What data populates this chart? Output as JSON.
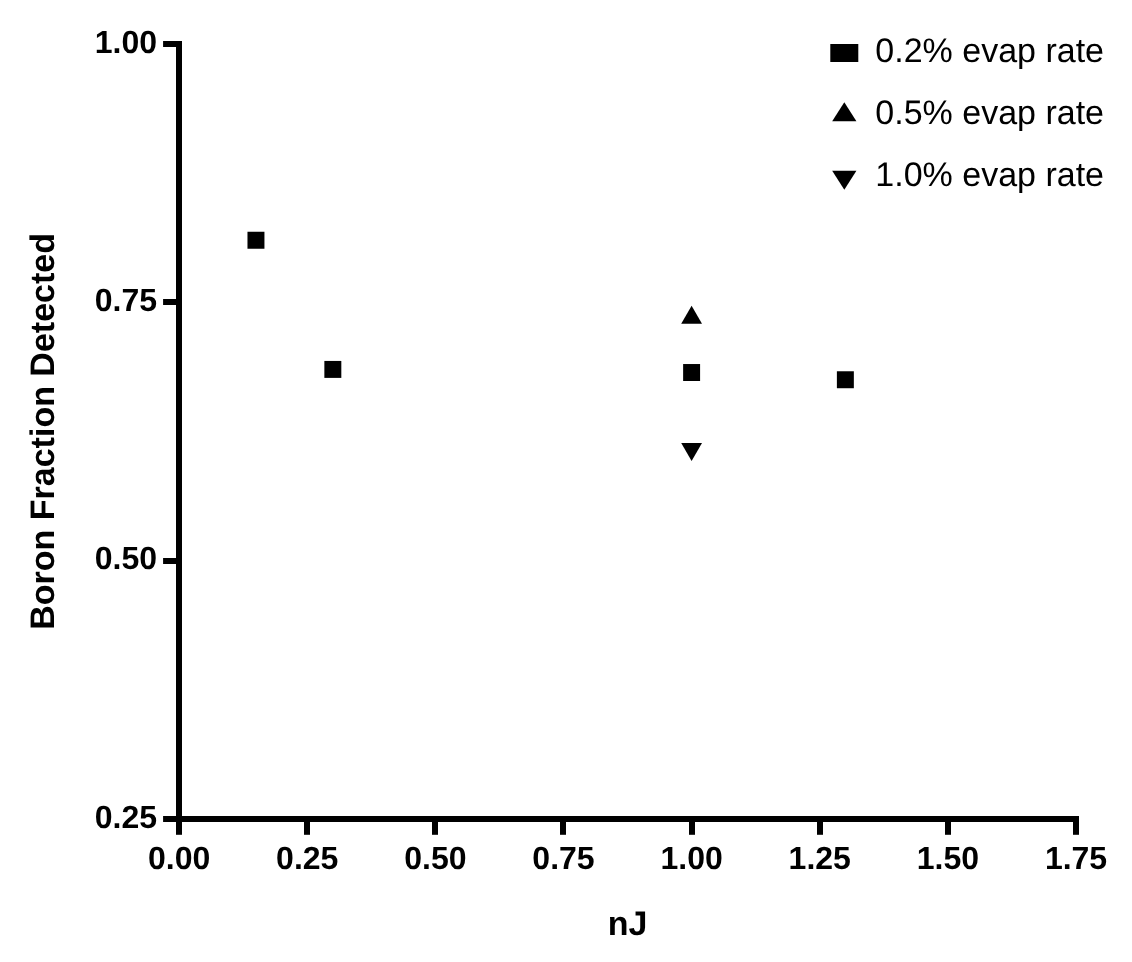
{
  "chart_data": {
    "type": "scatter",
    "xlabel": "nJ",
    "ylabel": "Boron Fraction Detected",
    "xlim": [
      0,
      1.75
    ],
    "xticks": [
      {
        "value": 0,
        "label": "0.00"
      },
      0.25,
      {
        "value": 0.5,
        "label": "0.50"
      },
      0.75,
      {
        "value": 1,
        "label": "1.00"
      },
      1.25,
      {
        "value": 1.5,
        "label": "1.50"
      },
      1.75
    ],
    "ylim": [
      0.25,
      1
    ],
    "yticks": [
      0.25,
      {
        "value": 0.5,
        "label": "0.50"
      },
      0.75,
      {
        "value": 1,
        "label": "1.00"
      }
    ],
    "grid": false,
    "legend": "top right",
    "series": [
      {
        "name": "0.2% evap rate",
        "color": "#000000",
        "marker": "square",
        "x": [
          0.15,
          0.3,
          1.0,
          1.3
        ],
        "values": [
          0.81,
          0.685,
          0.682,
          0.675
        ]
      },
      {
        "name": "0.5% evap rate",
        "color": "#000000",
        "marker": "triangle",
        "x": [
          1.0
        ],
        "values": [
          0.735
        ]
      },
      {
        "name": "1.0% evap rate",
        "color": "#000000",
        "marker": "triangle-down",
        "x": [
          1.0
        ],
        "values": [
          0.608
        ]
      }
    ]
  }
}
